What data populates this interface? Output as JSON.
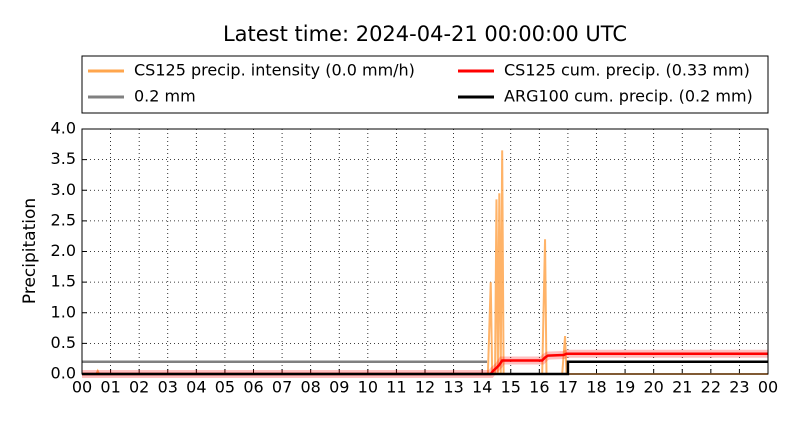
{
  "chart_data": {
    "type": "line",
    "title": "Latest time: 2024-04-21 00:00:00 UTC",
    "y_label": "Precipitation",
    "xlim": [
      0,
      24
    ],
    "ylim": [
      0,
      4
    ],
    "xticks": [
      {
        "value": 0,
        "label": "00"
      },
      {
        "value": 1,
        "label": "01"
      },
      {
        "value": 2,
        "label": "02"
      },
      {
        "value": 3,
        "label": "03"
      },
      {
        "value": 4,
        "label": "04"
      },
      {
        "value": 5,
        "label": "05"
      },
      {
        "value": 6,
        "label": "06"
      },
      {
        "value": 7,
        "label": "07"
      },
      {
        "value": 8,
        "label": "08"
      },
      {
        "value": 9,
        "label": "09"
      },
      {
        "value": 10,
        "label": "10"
      },
      {
        "value": 11,
        "label": "11"
      },
      {
        "value": 12,
        "label": "12"
      },
      {
        "value": 13,
        "label": "13"
      },
      {
        "value": 14,
        "label": "14"
      },
      {
        "value": 15,
        "label": "15"
      },
      {
        "value": 16,
        "label": "16"
      },
      {
        "value": 17,
        "label": "17"
      },
      {
        "value": 18,
        "label": "18"
      },
      {
        "value": 19,
        "label": "19"
      },
      {
        "value": 20,
        "label": "20"
      },
      {
        "value": 21,
        "label": "21"
      },
      {
        "value": 22,
        "label": "22"
      },
      {
        "value": 23,
        "label": "23"
      },
      {
        "value": 24,
        "label": "00"
      }
    ],
    "yticks": [
      {
        "value": 0,
        "label": "0.0"
      },
      {
        "value": 0.5,
        "label": "0.5"
      },
      {
        "value": 1,
        "label": "1.0"
      },
      {
        "value": 1.5,
        "label": "1.5"
      },
      {
        "value": 2,
        "label": "2.0"
      },
      {
        "value": 2.5,
        "label": "2.5"
      },
      {
        "value": 3,
        "label": "3.0"
      },
      {
        "value": 3.5,
        "label": "3.5"
      },
      {
        "value": 4,
        "label": "4.0"
      }
    ],
    "grid": true,
    "series": [
      {
        "name": "CS125 precip. intensity (0.0 mm/h)",
        "color": "#ffa64d",
        "x": [
          0,
          0.5,
          0.55,
          0.6,
          14.2,
          14.3,
          14.35,
          14.45,
          14.5,
          14.55,
          14.6,
          14.65,
          14.7,
          14.75,
          16.1,
          16.2,
          16.25,
          16.8,
          16.9,
          16.95,
          24
        ],
        "values": [
          0,
          0,
          0.05,
          0,
          0,
          1.5,
          0,
          0,
          2.85,
          0,
          2.95,
          0,
          3.65,
          0,
          0,
          2.2,
          0,
          0,
          0.62,
          0,
          0
        ]
      },
      {
        "name": "0.2 mm",
        "color": "#808080",
        "x": [
          0,
          14.17
        ],
        "values": [
          0.2,
          0.2
        ]
      },
      {
        "name": "CS125 cum. precip. (0.33 mm)",
        "color": "#ff0000",
        "x": [
          0,
          14.3,
          14.4,
          14.5,
          14.6,
          14.7,
          16.1,
          16.2,
          16.3,
          16.85,
          16.95,
          24
        ],
        "values": [
          0,
          0,
          0.06,
          0.1,
          0.15,
          0.22,
          0.22,
          0.27,
          0.3,
          0.31,
          0.33,
          0.33
        ]
      },
      {
        "name": "ARG100 cum. precip. (0.2 mm)",
        "color": "#000000",
        "x": [
          0,
          17,
          17,
          24
        ],
        "values": [
          0,
          0,
          0.2,
          0.2
        ]
      }
    ]
  }
}
